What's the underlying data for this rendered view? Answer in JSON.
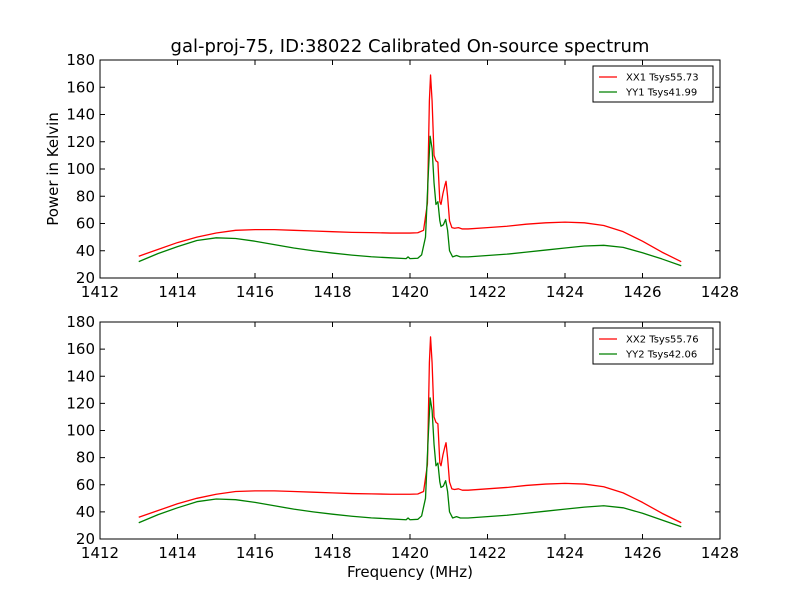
{
  "figure": {
    "title": "gal-proj-75, ID:38022 Calibrated On-source spectrum",
    "xlabel": "Frequency (MHz)",
    "ylabel": "Power in Kelvin"
  },
  "chart_data": [
    {
      "type": "line",
      "title": "gal-proj-75, ID:38022 Calibrated On-source spectrum",
      "xlabel": "",
      "ylabel": "Power in Kelvin",
      "xlim": [
        1412,
        1428
      ],
      "ylim": [
        20,
        180
      ],
      "xticks": [
        1412,
        1414,
        1416,
        1418,
        1420,
        1422,
        1424,
        1426,
        1428
      ],
      "yticks": [
        20,
        40,
        60,
        80,
        100,
        120,
        140,
        160,
        180
      ],
      "grid": false,
      "legend_position": "top-right",
      "series": [
        {
          "name": "XX1 Tsys55.73",
          "color": "#ff0000",
          "points": [
            [
              1413.0,
              36
            ],
            [
              1413.5,
              41
            ],
            [
              1414.0,
              46
            ],
            [
              1414.5,
              50
            ],
            [
              1415.0,
              53
            ],
            [
              1415.5,
              55
            ],
            [
              1416.0,
              55.5
            ],
            [
              1416.5,
              55.5
            ],
            [
              1417.0,
              55
            ],
            [
              1417.5,
              54.5
            ],
            [
              1418.0,
              54
            ],
            [
              1418.5,
              53.5
            ],
            [
              1419.0,
              53.3
            ],
            [
              1419.5,
              53
            ],
            [
              1420.0,
              53
            ],
            [
              1420.2,
              53.2
            ],
            [
              1420.35,
              55
            ],
            [
              1420.45,
              75
            ],
            [
              1420.5,
              150
            ],
            [
              1420.53,
              169
            ],
            [
              1420.57,
              150
            ],
            [
              1420.62,
              110
            ],
            [
              1420.67,
              106
            ],
            [
              1420.72,
              105
            ],
            [
              1420.77,
              76
            ],
            [
              1420.8,
              74
            ],
            [
              1420.85,
              82
            ],
            [
              1420.9,
              88
            ],
            [
              1420.93,
              91
            ],
            [
              1420.97,
              80
            ],
            [
              1421.02,
              62
            ],
            [
              1421.08,
              57
            ],
            [
              1421.15,
              56.5
            ],
            [
              1421.25,
              57
            ],
            [
              1421.35,
              56
            ],
            [
              1421.5,
              56
            ],
            [
              1422.0,
              57
            ],
            [
              1422.5,
              58
            ],
            [
              1423.0,
              59.5
            ],
            [
              1423.5,
              60.5
            ],
            [
              1424.0,
              61
            ],
            [
              1424.5,
              60.5
            ],
            [
              1425.0,
              58.5
            ],
            [
              1425.5,
              54
            ],
            [
              1426.0,
              47
            ],
            [
              1426.5,
              39
            ],
            [
              1427.0,
              32
            ]
          ]
        },
        {
          "name": "YY1 Tsys41.99",
          "color": "#008000",
          "points": [
            [
              1413.0,
              32
            ],
            [
              1413.5,
              38
            ],
            [
              1414.0,
              43
            ],
            [
              1414.5,
              47.5
            ],
            [
              1415.0,
              49.5
            ],
            [
              1415.5,
              49
            ],
            [
              1416.0,
              47
            ],
            [
              1416.5,
              44.5
            ],
            [
              1417.0,
              42
            ],
            [
              1417.5,
              40
            ],
            [
              1418.0,
              38.3
            ],
            [
              1418.5,
              36.8
            ],
            [
              1419.0,
              35.6
            ],
            [
              1419.5,
              34.8
            ],
            [
              1419.9,
              34.2
            ],
            [
              1419.95,
              35.5
            ],
            [
              1420.0,
              34.2
            ],
            [
              1420.2,
              34.5
            ],
            [
              1420.3,
              37
            ],
            [
              1420.4,
              50
            ],
            [
              1420.47,
              95
            ],
            [
              1420.52,
              124
            ],
            [
              1420.57,
              115
            ],
            [
              1420.62,
              90
            ],
            [
              1420.67,
              74
            ],
            [
              1420.72,
              76
            ],
            [
              1420.77,
              62
            ],
            [
              1420.8,
              58
            ],
            [
              1420.86,
              59
            ],
            [
              1420.92,
              63
            ],
            [
              1420.97,
              55
            ],
            [
              1421.02,
              40
            ],
            [
              1421.1,
              35.5
            ],
            [
              1421.2,
              36.5
            ],
            [
              1421.3,
              35.5
            ],
            [
              1421.5,
              35.5
            ],
            [
              1422.0,
              36.5
            ],
            [
              1422.5,
              37.5
            ],
            [
              1423.0,
              39
            ],
            [
              1423.5,
              40.5
            ],
            [
              1424.0,
              42
            ],
            [
              1424.5,
              43.5
            ],
            [
              1425.0,
              44
            ],
            [
              1425.5,
              42.5
            ],
            [
              1426.0,
              38.5
            ],
            [
              1426.5,
              34
            ],
            [
              1427.0,
              29
            ]
          ]
        }
      ]
    },
    {
      "type": "line",
      "title": "",
      "xlabel": "Frequency (MHz)",
      "ylabel": "",
      "xlim": [
        1412,
        1428
      ],
      "ylim": [
        20,
        180
      ],
      "xticks": [
        1412,
        1414,
        1416,
        1418,
        1420,
        1422,
        1424,
        1426,
        1428
      ],
      "yticks": [
        20,
        40,
        60,
        80,
        100,
        120,
        140,
        160,
        180
      ],
      "grid": false,
      "legend_position": "top-right",
      "series": [
        {
          "name": "XX2 Tsys55.76",
          "color": "#ff0000",
          "points": [
            [
              1413.0,
              36
            ],
            [
              1413.5,
              41
            ],
            [
              1414.0,
              46
            ],
            [
              1414.5,
              50
            ],
            [
              1415.0,
              53
            ],
            [
              1415.5,
              55
            ],
            [
              1416.0,
              55.5
            ],
            [
              1416.5,
              55.5
            ],
            [
              1417.0,
              55
            ],
            [
              1417.5,
              54.5
            ],
            [
              1418.0,
              54
            ],
            [
              1418.5,
              53.5
            ],
            [
              1419.0,
              53.3
            ],
            [
              1419.5,
              53
            ],
            [
              1420.0,
              53
            ],
            [
              1420.2,
              53.2
            ],
            [
              1420.35,
              55
            ],
            [
              1420.45,
              75
            ],
            [
              1420.5,
              150
            ],
            [
              1420.53,
              169
            ],
            [
              1420.57,
              150
            ],
            [
              1420.62,
              110
            ],
            [
              1420.67,
              106
            ],
            [
              1420.72,
              105
            ],
            [
              1420.77,
              76
            ],
            [
              1420.8,
              74
            ],
            [
              1420.85,
              82
            ],
            [
              1420.9,
              88
            ],
            [
              1420.93,
              91
            ],
            [
              1420.97,
              80
            ],
            [
              1421.02,
              62
            ],
            [
              1421.08,
              57
            ],
            [
              1421.15,
              56.5
            ],
            [
              1421.25,
              57
            ],
            [
              1421.35,
              56
            ],
            [
              1421.5,
              56
            ],
            [
              1422.0,
              57
            ],
            [
              1422.5,
              58
            ],
            [
              1423.0,
              59.5
            ],
            [
              1423.5,
              60.5
            ],
            [
              1424.0,
              61
            ],
            [
              1424.5,
              60.5
            ],
            [
              1425.0,
              58.5
            ],
            [
              1425.5,
              54
            ],
            [
              1426.0,
              47
            ],
            [
              1426.5,
              39
            ],
            [
              1427.0,
              32
            ]
          ]
        },
        {
          "name": "YY2 Tsys42.06",
          "color": "#008000",
          "points": [
            [
              1413.0,
              32
            ],
            [
              1413.5,
              38
            ],
            [
              1414.0,
              43
            ],
            [
              1414.5,
              47.5
            ],
            [
              1415.0,
              49.5
            ],
            [
              1415.5,
              49
            ],
            [
              1416.0,
              47
            ],
            [
              1416.5,
              44.5
            ],
            [
              1417.0,
              42
            ],
            [
              1417.5,
              40
            ],
            [
              1418.0,
              38.3
            ],
            [
              1418.5,
              36.8
            ],
            [
              1419.0,
              35.6
            ],
            [
              1419.5,
              34.8
            ],
            [
              1419.9,
              34.2
            ],
            [
              1419.95,
              35.5
            ],
            [
              1420.0,
              34.2
            ],
            [
              1420.2,
              34.5
            ],
            [
              1420.3,
              37
            ],
            [
              1420.4,
              50
            ],
            [
              1420.47,
              95
            ],
            [
              1420.52,
              124
            ],
            [
              1420.57,
              115
            ],
            [
              1420.62,
              90
            ],
            [
              1420.67,
              74
            ],
            [
              1420.72,
              76
            ],
            [
              1420.77,
              62
            ],
            [
              1420.8,
              58
            ],
            [
              1420.86,
              59
            ],
            [
              1420.92,
              63
            ],
            [
              1420.97,
              55
            ],
            [
              1421.02,
              40
            ],
            [
              1421.1,
              35.5
            ],
            [
              1421.2,
              36.5
            ],
            [
              1421.3,
              35.5
            ],
            [
              1421.5,
              35.5
            ],
            [
              1422.0,
              36.5
            ],
            [
              1422.5,
              37.5
            ],
            [
              1423.0,
              39
            ],
            [
              1423.5,
              40.5
            ],
            [
              1424.0,
              42
            ],
            [
              1424.5,
              43.5
            ],
            [
              1425.0,
              44.5
            ],
            [
              1425.5,
              43
            ],
            [
              1426.0,
              39
            ],
            [
              1426.5,
              34
            ],
            [
              1427.0,
              29
            ]
          ]
        }
      ]
    }
  ]
}
